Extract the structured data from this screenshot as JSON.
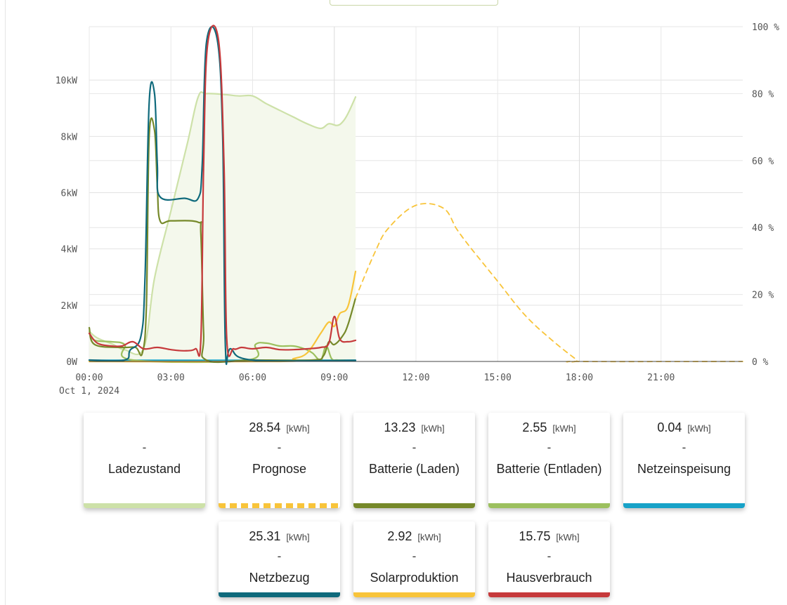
{
  "chart_data": {
    "type": "line",
    "date_label": "Oct 1, 2024",
    "x_ticks": [
      "00:00",
      "03:00",
      "06:00",
      "09:00",
      "12:00",
      "15:00",
      "18:00",
      "21:00"
    ],
    "y_left_ticks": [
      "0W",
      "2kW",
      "4kW",
      "6kW",
      "8kW",
      "10kW"
    ],
    "y_left_range_kw": [
      0,
      11.9
    ],
    "y_right_ticks": [
      "0 %",
      "20 %",
      "40 %",
      "60 %",
      "80 %",
      "100 %"
    ],
    "y_right_range_pct": [
      0,
      100
    ],
    "x_range_hours": [
      0,
      24
    ],
    "grid": true,
    "series": [
      {
        "name": "Ladezustand",
        "axis": "right",
        "color": "#cde1a8",
        "fill": true,
        "points": [
          [
            0,
            9
          ],
          [
            0.3,
            7
          ],
          [
            0.9,
            5
          ],
          [
            1.3,
            3.5
          ],
          [
            2,
            4
          ],
          [
            2.4,
            25
          ],
          [
            3,
            45
          ],
          [
            3.6,
            65
          ],
          [
            4,
            79
          ],
          [
            4.3,
            80
          ],
          [
            5,
            79.7
          ],
          [
            5.5,
            79.3
          ],
          [
            6,
            79.3
          ],
          [
            6.5,
            77
          ],
          [
            7,
            75
          ],
          [
            7.5,
            73
          ],
          [
            8,
            71
          ],
          [
            8.5,
            69.6
          ],
          [
            8.8,
            71
          ],
          [
            9.1,
            70.5
          ],
          [
            9.3,
            71.5
          ],
          [
            9.5,
            74
          ],
          [
            9.78,
            79
          ]
        ]
      },
      {
        "name": "Prognose",
        "axis": "left",
        "color": "#f8c43a",
        "dashed": true,
        "points": [
          [
            9.78,
            2.25
          ],
          [
            10.5,
            3.9
          ],
          [
            11,
            4.75
          ],
          [
            12,
            5.55
          ],
          [
            13,
            5.45
          ],
          [
            13.5,
            4.7
          ],
          [
            14,
            4.05
          ],
          [
            15,
            2.85
          ],
          [
            16,
            1.65
          ],
          [
            17,
            0.75
          ],
          [
            17.9,
            0.06
          ],
          [
            18,
            0
          ],
          [
            24,
            0
          ]
        ]
      },
      {
        "name": "Batterie (Laden)",
        "axis": "left",
        "color": "#76892a",
        "points": [
          [
            0,
            1.2
          ],
          [
            0.2,
            0.6
          ],
          [
            1.2,
            0.5
          ],
          [
            1.7,
            0.5
          ],
          [
            1.95,
            0.3
          ],
          [
            2.1,
            2
          ],
          [
            2.2,
            8
          ],
          [
            2.4,
            8.2
          ],
          [
            2.5,
            6.2
          ],
          [
            2.6,
            5
          ],
          [
            3,
            5
          ],
          [
            4,
            4.95
          ],
          [
            4.1,
            4.5
          ],
          [
            4.2,
            1
          ],
          [
            4.3,
            0.05
          ],
          [
            6,
            0.05
          ],
          [
            8.2,
            0.05
          ],
          [
            8.6,
            0.2
          ],
          [
            8.8,
            0.7
          ],
          [
            9,
            0.6
          ],
          [
            9.3,
            0.9
          ],
          [
            9.5,
            1.3
          ],
          [
            9.78,
            2.25
          ]
        ]
      },
      {
        "name": "Batterie (Entladen)",
        "axis": "left",
        "color": "#9cc05e",
        "points": [
          [
            0,
            1.0
          ],
          [
            0.2,
            0.75
          ],
          [
            0.8,
            0.7
          ],
          [
            1.3,
            0.6
          ],
          [
            1.6,
            0.05
          ],
          [
            5.8,
            0.05
          ],
          [
            6.1,
            0.6
          ],
          [
            6.5,
            0.65
          ],
          [
            7,
            0.55
          ],
          [
            7.5,
            0.55
          ],
          [
            7.9,
            0.45
          ],
          [
            8.2,
            0.3
          ],
          [
            8.5,
            0.05
          ],
          [
            8.7,
            0.55
          ],
          [
            8.9,
            0.1
          ],
          [
            9.1,
            0.05
          ],
          [
            9.4,
            0.04
          ]
        ]
      },
      {
        "name": "Netzeinspeisung",
        "axis": "left",
        "color": "#17a2c8",
        "points": [
          [
            0,
            0.04
          ],
          [
            9.78,
            0.04
          ]
        ]
      },
      {
        "name": "Netzbezug",
        "axis": "left",
        "color": "#0f6a7c",
        "points": [
          [
            0,
            0.05
          ],
          [
            1.3,
            0.05
          ],
          [
            1.5,
            0.4
          ],
          [
            1.9,
            0.9
          ],
          [
            2.05,
            3
          ],
          [
            2.2,
            9.2
          ],
          [
            2.4,
            9.5
          ],
          [
            2.5,
            7
          ],
          [
            2.6,
            5.85
          ],
          [
            3.5,
            5.8
          ],
          [
            4,
            5.8
          ],
          [
            4.15,
            7
          ],
          [
            4.3,
            11.3
          ],
          [
            4.7,
            11.45
          ],
          [
            4.9,
            8
          ],
          [
            5,
            0.5
          ],
          [
            5.2,
            0.45
          ],
          [
            6,
            0.05
          ],
          [
            9.78,
            0.04
          ]
        ]
      },
      {
        "name": "Solarproduktion",
        "axis": "left",
        "color": "#f8c43a",
        "points": [
          [
            0,
            0
          ],
          [
            7,
            0
          ],
          [
            7.5,
            0.1
          ],
          [
            8,
            0.3
          ],
          [
            8.5,
            1.0
          ],
          [
            8.8,
            1.4
          ],
          [
            9,
            1.25
          ],
          [
            9.2,
            1.7
          ],
          [
            9.5,
            1.95
          ],
          [
            9.78,
            3.2
          ]
        ]
      },
      {
        "name": "Hausverbrauch",
        "axis": "left",
        "color": "#c6393b",
        "points": [
          [
            0,
            1.0
          ],
          [
            0.3,
            0.65
          ],
          [
            0.8,
            0.55
          ],
          [
            1.2,
            0.55
          ],
          [
            1.6,
            0.7
          ],
          [
            2,
            0.45
          ],
          [
            2.5,
            0.5
          ],
          [
            3,
            0.42
          ],
          [
            3.5,
            0.38
          ],
          [
            3.9,
            0.45
          ],
          [
            4.1,
            0.8
          ],
          [
            4.2,
            7
          ],
          [
            4.35,
            11.3
          ],
          [
            4.75,
            11.4
          ],
          [
            4.95,
            7
          ],
          [
            5.05,
            0.8
          ],
          [
            5.3,
            0.45
          ],
          [
            5.6,
            0.5
          ],
          [
            6,
            0.45
          ],
          [
            6.5,
            0.5
          ],
          [
            7,
            0.42
          ],
          [
            7.5,
            0.42
          ],
          [
            8,
            0.45
          ],
          [
            8.5,
            0.5
          ],
          [
            8.8,
            0.65
          ],
          [
            9,
            1.6
          ],
          [
            9.2,
            0.8
          ],
          [
            9.5,
            0.7
          ],
          [
            9.78,
            0.75
          ]
        ]
      }
    ]
  },
  "cards": [
    {
      "id": "ladezustand",
      "value": "",
      "unit": "",
      "dash": "-",
      "label": "Ladezustand",
      "color": "#cde1a8",
      "bar": "solid"
    },
    {
      "id": "prognose",
      "value": "28.54",
      "unit": "[kWh]",
      "dash": "-",
      "label": "Prognose",
      "color": "#f8c43a",
      "bar": "dashed"
    },
    {
      "id": "batterie-laden",
      "value": "13.23",
      "unit": "[kWh]",
      "dash": "-",
      "label": "Batterie (Laden)",
      "color": "#76892a",
      "bar": "solid"
    },
    {
      "id": "batterie-entladen",
      "value": "2.55",
      "unit": "[kWh]",
      "dash": "-",
      "label": "Batterie (Entladen)",
      "color": "#9cc05e",
      "bar": "solid"
    },
    {
      "id": "netzeinspeisung",
      "value": "0.04",
      "unit": "[kWh]",
      "dash": "-",
      "label": "Netzeinspeisung",
      "color": "#17a2c8",
      "bar": "solid"
    },
    {
      "id": "netzbezug",
      "value": "25.31",
      "unit": "[kWh]",
      "dash": "-",
      "label": "Netzbezug",
      "color": "#0f6a7c",
      "bar": "solid"
    },
    {
      "id": "solarproduktion",
      "value": "2.92",
      "unit": "[kWh]",
      "dash": "-",
      "label": "Solarproduktion",
      "color": "#f8c43a",
      "bar": "solid"
    },
    {
      "id": "hausverbrauch",
      "value": "15.75",
      "unit": "[kWh]",
      "dash": "-",
      "label": "Hausverbrauch",
      "color": "#c6393b",
      "bar": "solid"
    }
  ]
}
